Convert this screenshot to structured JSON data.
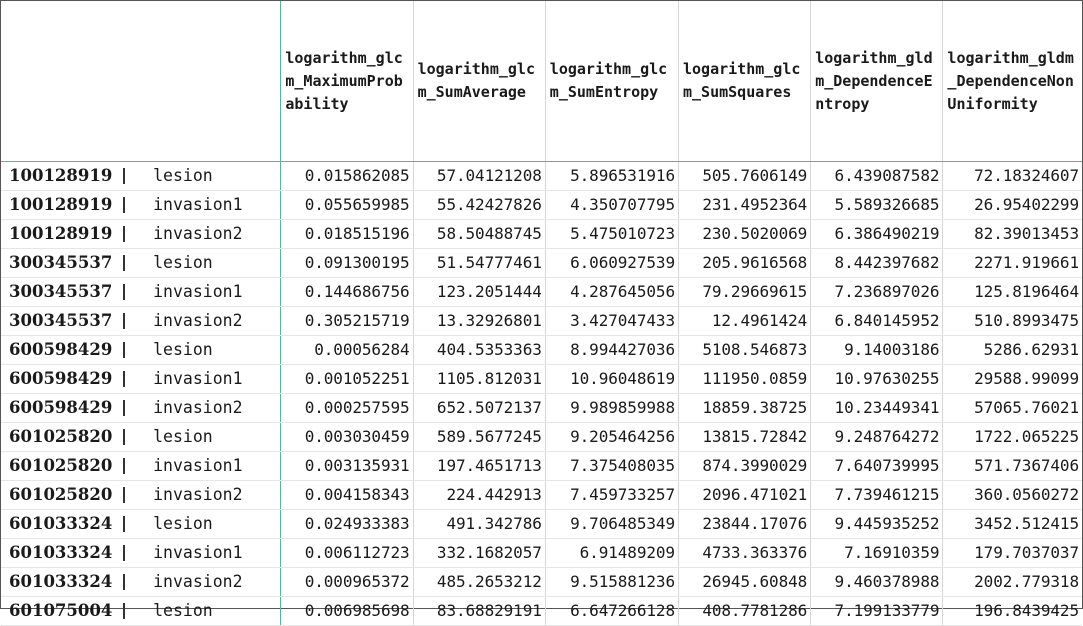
{
  "columns": [
    "logarithm_glcm_MaximumProbability",
    "logarithm_glcm_SumAverage",
    "logarithm_glcm_SumEntropy",
    "logarithm_glcm_SumSquares",
    "logarithm_gldm_DependenceEntropy",
    "logarithm_gldm_DependenceNonUniformity"
  ],
  "rows": [
    {
      "id": "100128919",
      "tissue": "lesion",
      "values": [
        "0.015862085",
        "57.04121208",
        "5.896531916",
        "505.7606149",
        "6.439087582",
        "72.18324607"
      ]
    },
    {
      "id": "100128919",
      "tissue": "invasion1",
      "values": [
        "0.055659985",
        "55.42427826",
        "4.350707795",
        "231.4952364",
        "5.589326685",
        "26.95402299"
      ]
    },
    {
      "id": "100128919",
      "tissue": "invasion2",
      "values": [
        "0.018515196",
        "58.50488745",
        "5.475010723",
        "230.5020069",
        "6.386490219",
        "82.39013453"
      ]
    },
    {
      "id": "300345537",
      "tissue": "lesion",
      "values": [
        "0.091300195",
        "51.54777461",
        "6.060927539",
        "205.9616568",
        "8.442397682",
        "2271.919661"
      ]
    },
    {
      "id": "300345537",
      "tissue": "invasion1",
      "values": [
        "0.144686756",
        "123.2051444",
        "4.287645056",
        "79.29669615",
        "7.236897026",
        "125.8196464"
      ]
    },
    {
      "id": "300345537",
      "tissue": "invasion2",
      "values": [
        "0.305215719",
        "13.32926801",
        "3.427047433",
        "12.4961424",
        "6.840145952",
        "510.8993475"
      ]
    },
    {
      "id": "600598429",
      "tissue": "lesion",
      "values": [
        "0.00056284",
        "404.5353363",
        "8.994427036",
        "5108.546873",
        "9.14003186",
        "5286.62931"
      ]
    },
    {
      "id": "600598429",
      "tissue": "invasion1",
      "values": [
        "0.001052251",
        "1105.812031",
        "10.96048619",
        "111950.0859",
        "10.97630255",
        "29588.99099"
      ]
    },
    {
      "id": "600598429",
      "tissue": "invasion2",
      "values": [
        "0.000257595",
        "652.5072137",
        "9.989859988",
        "18859.38725",
        "10.23449341",
        "57065.76021"
      ]
    },
    {
      "id": "601025820",
      "tissue": "lesion",
      "values": [
        "0.003030459",
        "589.5677245",
        "9.205464256",
        "13815.72842",
        "9.248764272",
        "1722.065225"
      ]
    },
    {
      "id": "601025820",
      "tissue": "invasion1",
      "values": [
        "0.003135931",
        "197.4651713",
        "7.375408035",
        "874.3990029",
        "7.640739995",
        "571.7367406"
      ]
    },
    {
      "id": "601025820",
      "tissue": "invasion2",
      "values": [
        "0.004158343",
        "224.442913",
        "7.459733257",
        "2096.471021",
        "7.739461215",
        "360.0560272"
      ]
    },
    {
      "id": "601033324",
      "tissue": "lesion",
      "values": [
        "0.024933383",
        "491.342786",
        "9.706485349",
        "23844.17076",
        "9.445935252",
        "3452.512415"
      ]
    },
    {
      "id": "601033324",
      "tissue": "invasion1",
      "values": [
        "0.006112723",
        "332.1682057",
        "6.91489209",
        "4733.363376",
        "7.16910359",
        "179.7037037"
      ]
    },
    {
      "id": "601033324",
      "tissue": "invasion2",
      "values": [
        "0.000965372",
        "485.2653212",
        "9.515881236",
        "26945.60848",
        "9.460378988",
        "2002.779318"
      ]
    },
    {
      "id": "601075004",
      "tissue": "lesion",
      "values": [
        "0.006985698",
        "83.68829191",
        "6.647266128",
        "408.7781286",
        "7.199133779",
        "196.8439425"
      ]
    }
  ]
}
